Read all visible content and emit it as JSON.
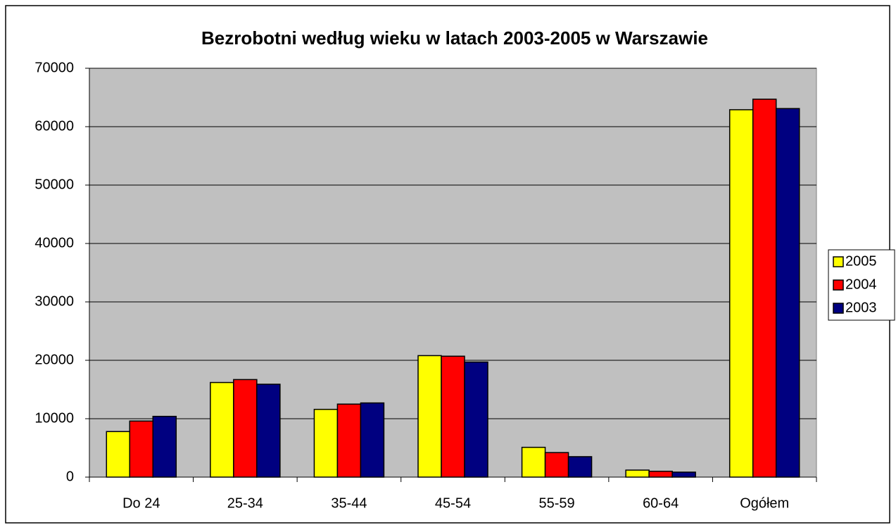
{
  "chart_data": {
    "type": "bar",
    "title": "Bezrobotni według wieku w latach 2003-2005 w Warszawie",
    "categories": [
      "Do 24",
      "25-34",
      "35-44",
      "45-54",
      "55-59",
      "60-64",
      "Ogółem"
    ],
    "series": [
      {
        "name": "2005",
        "color": "#ffff00",
        "values": [
          7800,
          16200,
          11600,
          20800,
          5100,
          1200,
          62900
        ]
      },
      {
        "name": "2004",
        "color": "#ff0000",
        "values": [
          9600,
          16700,
          12500,
          20700,
          4200,
          1000,
          64700
        ]
      },
      {
        "name": "2003",
        "color": "#000080",
        "values": [
          10400,
          15900,
          12700,
          19700,
          3500,
          850,
          63100
        ]
      }
    ],
    "ylim": [
      0,
      70000
    ],
    "yticks": [
      0,
      10000,
      20000,
      30000,
      40000,
      50000,
      60000,
      70000
    ],
    "grid": true,
    "legend": "right"
  }
}
